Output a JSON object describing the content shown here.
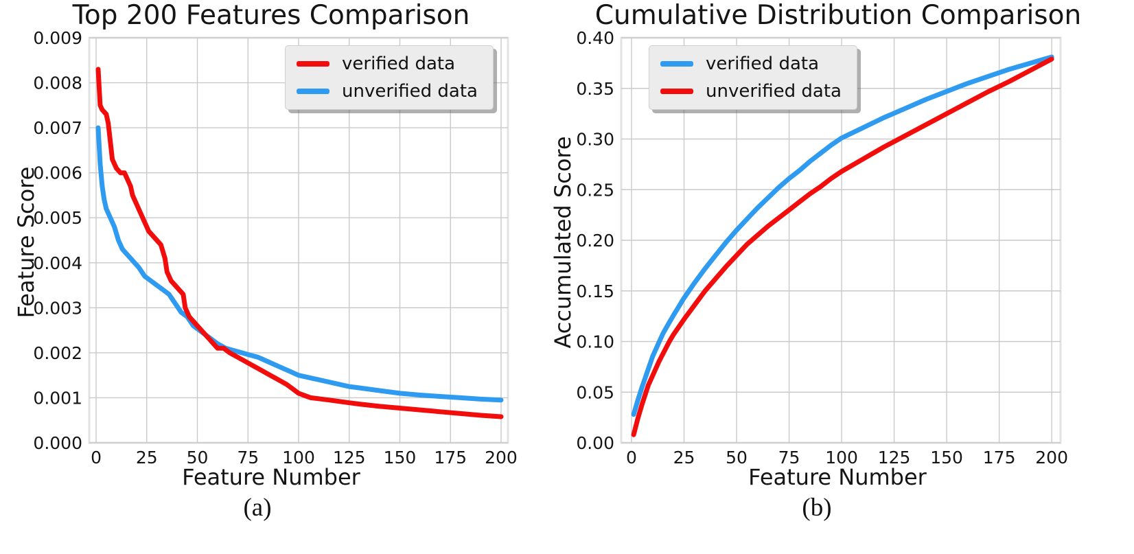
{
  "figure": {
    "background": "#ffffff",
    "plot_background": "#ffffff",
    "grid_color": "#c9c9c9",
    "spine_color": "#e3e3e3",
    "text_color": "#151515",
    "red": "#f20d0d",
    "blue": "#2e9bf0"
  },
  "chart_data": [
    {
      "type": "line",
      "title": "Top 200 Features Comparison",
      "xlabel": "Feature Number",
      "ylabel": "Feature Score",
      "caption": "(a)",
      "xlim": [
        -3.4,
        203.4
      ],
      "ylim": [
        0,
        0.009
      ],
      "grid": true,
      "legend": {
        "position": "top-right",
        "entries": [
          {
            "label": "verified data",
            "color": "#f20d0d"
          },
          {
            "label": "unverified data",
            "color": "#2e9bf0"
          }
        ]
      },
      "xticks": {
        "values": [
          0,
          25,
          50,
          75,
          100,
          125,
          150,
          175,
          200
        ],
        "labels": [
          "0",
          "25",
          "50",
          "75",
          "100",
          "125",
          "150",
          "175",
          "200"
        ]
      },
      "yticks": {
        "values": [
          0,
          0.001,
          0.002,
          0.003,
          0.004,
          0.005,
          0.006,
          0.007,
          0.008,
          0.009
        ],
        "labels": [
          "0.000",
          "0.001",
          "0.002",
          "0.003",
          "0.004",
          "0.005",
          "0.006",
          "0.007",
          "0.008",
          "0.009"
        ]
      },
      "series": [
        {
          "name": "unverified data",
          "color": "#2e9bf0",
          "x": [
            1,
            2,
            3,
            4,
            5,
            7,
            9,
            11,
            13,
            15,
            17,
            19,
            21,
            24,
            27,
            30,
            33,
            36,
            39,
            42,
            45,
            48,
            51,
            54,
            57,
            60,
            64,
            68,
            72,
            76,
            80,
            85,
            90,
            95,
            100,
            105,
            110,
            115,
            120,
            125,
            130,
            135,
            140,
            150,
            160,
            170,
            180,
            190,
            200
          ],
          "y": [
            0.007,
            0.0062,
            0.0057,
            0.0054,
            0.0052,
            0.005,
            0.0048,
            0.0045,
            0.0043,
            0.0042,
            0.0041,
            0.004,
            0.0039,
            0.0037,
            0.0036,
            0.0035,
            0.0034,
            0.0033,
            0.0031,
            0.0029,
            0.0028,
            0.0026,
            0.0025,
            0.0024,
            0.0023,
            0.0022,
            0.0021,
            0.00205,
            0.002,
            0.00195,
            0.0019,
            0.0018,
            0.0017,
            0.0016,
            0.0015,
            0.00145,
            0.0014,
            0.00135,
            0.0013,
            0.00125,
            0.00122,
            0.00119,
            0.00116,
            0.0011,
            0.00106,
            0.00103,
            0.001,
            0.00097,
            0.00095
          ]
        },
        {
          "name": "verified data",
          "color": "#f20d0d",
          "x": [
            1,
            2,
            3,
            5,
            6,
            7,
            8,
            10,
            12,
            14,
            15,
            17,
            18,
            20,
            22,
            24,
            26,
            28,
            30,
            32,
            34,
            35,
            37,
            39,
            41,
            43,
            44,
            46,
            48,
            50,
            52,
            54,
            56,
            58,
            60,
            63,
            66,
            70,
            74,
            78,
            82,
            86,
            90,
            94,
            97,
            100,
            103,
            106,
            110,
            115,
            120,
            125,
            130,
            140,
            150,
            160,
            170,
            180,
            190,
            200
          ],
          "y": [
            0.0083,
            0.0075,
            0.0074,
            0.0073,
            0.0071,
            0.0067,
            0.0063,
            0.0061,
            0.006,
            0.006,
            0.0059,
            0.0057,
            0.0055,
            0.0053,
            0.0051,
            0.0049,
            0.0047,
            0.0046,
            0.0045,
            0.0044,
            0.0041,
            0.0038,
            0.0036,
            0.0035,
            0.0034,
            0.0033,
            0.003,
            0.0028,
            0.0027,
            0.0026,
            0.0025,
            0.0024,
            0.0023,
            0.0022,
            0.0021,
            0.0021,
            0.002,
            0.0019,
            0.0018,
            0.0017,
            0.0016,
            0.0015,
            0.0014,
            0.0013,
            0.0012,
            0.0011,
            0.00105,
            0.001,
            0.00098,
            0.00095,
            0.00092,
            0.00089,
            0.00086,
            0.00081,
            0.00077,
            0.00073,
            0.00069,
            0.00065,
            0.00061,
            0.00058
          ]
        }
      ]
    },
    {
      "type": "line",
      "title": "Cumulative Distribution Comparison",
      "xlabel": "Feature Number",
      "ylabel": "Accumulated Score",
      "caption": "(b)",
      "xlim": [
        -4.9,
        204.2
      ],
      "ylim": [
        0,
        0.4
      ],
      "grid": true,
      "legend": {
        "position": "top-left",
        "entries": [
          {
            "label": "verified data",
            "color": "#2e9bf0"
          },
          {
            "label": "unverified data",
            "color": "#f20d0d"
          }
        ]
      },
      "xticks": {
        "values": [
          0,
          25,
          50,
          75,
          100,
          125,
          150,
          175,
          200
        ],
        "labels": [
          "0",
          "25",
          "50",
          "75",
          "100",
          "125",
          "150",
          "175",
          "200"
        ]
      },
      "yticks": {
        "values": [
          0,
          0.05,
          0.1,
          0.15,
          0.2,
          0.25,
          0.3,
          0.35,
          0.4
        ],
        "labels": [
          "0.00",
          "0.05",
          "0.10",
          "0.15",
          "0.20",
          "0.25",
          "0.30",
          "0.35",
          "0.40"
        ]
      },
      "series": [
        {
          "name": "verified data",
          "color": "#2e9bf0",
          "x": [
            1,
            3,
            5,
            8,
            10,
            13,
            15,
            18,
            20,
            25,
            30,
            35,
            40,
            45,
            50,
            55,
            60,
            65,
            70,
            75,
            80,
            85,
            90,
            95,
            100,
            110,
            120,
            130,
            140,
            150,
            160,
            170,
            180,
            190,
            200
          ],
          "y": [
            0.028,
            0.042,
            0.055,
            0.073,
            0.085,
            0.099,
            0.108,
            0.119,
            0.126,
            0.143,
            0.158,
            0.172,
            0.185,
            0.198,
            0.21,
            0.221,
            0.232,
            0.242,
            0.252,
            0.261,
            0.269,
            0.278,
            0.286,
            0.294,
            0.301,
            0.311,
            0.321,
            0.33,
            0.339,
            0.347,
            0.355,
            0.362,
            0.369,
            0.375,
            0.381
          ]
        },
        {
          "name": "unverified data",
          "color": "#f20d0d",
          "x": [
            1,
            3,
            5,
            8,
            10,
            13,
            15,
            18,
            20,
            25,
            30,
            35,
            40,
            45,
            50,
            55,
            60,
            65,
            70,
            75,
            80,
            85,
            90,
            95,
            100,
            110,
            120,
            130,
            140,
            150,
            160,
            170,
            180,
            190,
            200
          ],
          "y": [
            0.008,
            0.024,
            0.038,
            0.057,
            0.066,
            0.08,
            0.088,
            0.1,
            0.107,
            0.122,
            0.136,
            0.15,
            0.162,
            0.174,
            0.185,
            0.196,
            0.205,
            0.214,
            0.222,
            0.23,
            0.238,
            0.246,
            0.253,
            0.261,
            0.268,
            0.28,
            0.292,
            0.303,
            0.314,
            0.325,
            0.336,
            0.347,
            0.357,
            0.368,
            0.379
          ]
        }
      ]
    }
  ]
}
